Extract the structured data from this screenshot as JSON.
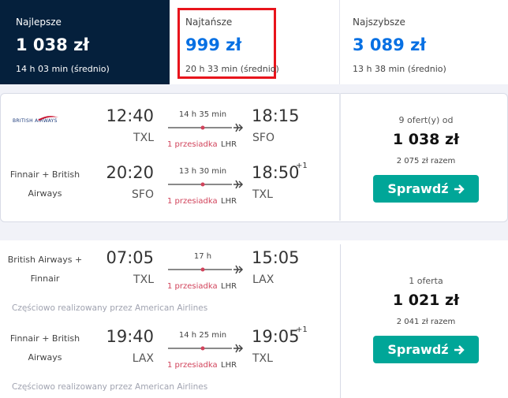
{
  "tabs": [
    {
      "label": "Najlepsze",
      "price": "1 038 zł",
      "duration": "14 h 03 min (średnio)"
    },
    {
      "label": "Najtańsze",
      "price": "999 zł",
      "duration": "20 h 33 min (średnio)"
    },
    {
      "label": "Najszybsze",
      "price": "3 089 zł",
      "duration": "13 h 38 min (średnio)"
    }
  ],
  "results": [
    {
      "legs": [
        {
          "airline": "BRITISH AIRWAYS",
          "depart_time": "12:40",
          "depart_airport": "TXL",
          "duration": "14 h 35 min",
          "stops": "1 przesiadka",
          "via": "LHR",
          "arrive_time": "18:15",
          "arrive_airport": "SFO"
        },
        {
          "airline": "Finnair + British Airways",
          "depart_time": "20:20",
          "depart_airport": "SFO",
          "duration": "13 h 30 min",
          "stops": "1 przesiadka",
          "via": "LHR",
          "arrive_time": "18:50",
          "day_offset": "+1",
          "arrive_airport": "TXL"
        }
      ],
      "offers": "9 ofert(y) od",
      "price": "1 038 zł",
      "total": "2 075 zł razem",
      "button": "Sprawdź"
    },
    {
      "legs": [
        {
          "airline": "British Airways + Finnair",
          "depart_time": "07:05",
          "depart_airport": "TXL",
          "duration": "17 h",
          "stops": "1 przesiadka",
          "via": "LHR",
          "arrive_time": "15:05",
          "arrive_airport": "LAX",
          "operated_by": "Częściowo realizowany przez American Airlines"
        },
        {
          "airline": "Finnair + British Airways",
          "depart_time": "19:40",
          "depart_airport": "LAX",
          "duration": "14 h 25 min",
          "stops": "1 przesiadka",
          "via": "LHR",
          "arrive_time": "19:05",
          "day_offset": "+1",
          "arrive_airport": "TXL",
          "operated_by": "Częściowo realizowany przez American Airlines"
        }
      ],
      "offers": "1 oferta",
      "price": "1 021 zł",
      "total": "2 041 zł razem",
      "button": "Sprawdź"
    }
  ]
}
